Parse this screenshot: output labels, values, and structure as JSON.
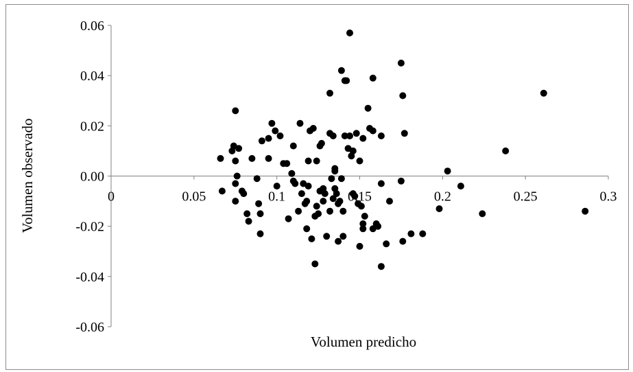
{
  "chart_data": {
    "type": "scatter",
    "title": "",
    "xlabel": "Volumen predicho",
    "ylabel": "Volumen observado",
    "xlim": [
      0,
      0.3
    ],
    "ylim": [
      -0.06,
      0.06
    ],
    "x_ticks": [
      0,
      0.05,
      0.1,
      0.15,
      0.2,
      0.25,
      0.3
    ],
    "x_tick_labels": [
      "0",
      "0.05",
      "0.1",
      "0.15",
      "0.2",
      "0.25",
      "0.3"
    ],
    "y_ticks": [
      0.06,
      0.04,
      0.02,
      0.0,
      -0.02,
      -0.04,
      -0.06
    ],
    "y_tick_labels": [
      "0.06",
      "0.04",
      "0.02",
      "0.00",
      "-0.02",
      "-0.04",
      "-0.06"
    ],
    "grid": false,
    "legend": "none",
    "marker_color": "#000000",
    "series": [
      {
        "points": [
          [
            0.066,
            0.007
          ],
          [
            0.067,
            -0.006
          ],
          [
            0.073,
            0.01
          ],
          [
            0.074,
            0.012
          ],
          [
            0.075,
            0.026
          ],
          [
            0.075,
            0.006
          ],
          [
            0.075,
            -0.003
          ],
          [
            0.075,
            -0.01
          ],
          [
            0.076,
            0.0
          ],
          [
            0.077,
            0.011
          ],
          [
            0.079,
            -0.006
          ],
          [
            0.08,
            -0.007
          ],
          [
            0.082,
            -0.015
          ],
          [
            0.083,
            -0.018
          ],
          [
            0.085,
            0.007
          ],
          [
            0.088,
            -0.001
          ],
          [
            0.089,
            -0.011
          ],
          [
            0.09,
            -0.015
          ],
          [
            0.09,
            -0.023
          ],
          [
            0.091,
            0.014
          ],
          [
            0.095,
            0.015
          ],
          [
            0.095,
            0.007
          ],
          [
            0.097,
            0.021
          ],
          [
            0.099,
            0.018
          ],
          [
            0.1,
            -0.004
          ],
          [
            0.102,
            0.016
          ],
          [
            0.104,
            0.005
          ],
          [
            0.106,
            0.005
          ],
          [
            0.107,
            -0.017
          ],
          [
            0.109,
            0.001
          ],
          [
            0.11,
            0.012
          ],
          [
            0.11,
            -0.002
          ],
          [
            0.111,
            -0.003
          ],
          [
            0.113,
            -0.014
          ],
          [
            0.114,
            0.021
          ],
          [
            0.115,
            -0.007
          ],
          [
            0.116,
            -0.003
          ],
          [
            0.117,
            -0.011
          ],
          [
            0.118,
            -0.01
          ],
          [
            0.118,
            -0.021
          ],
          [
            0.119,
            0.006
          ],
          [
            0.119,
            -0.004
          ],
          [
            0.12,
            0.018
          ],
          [
            0.121,
            -0.025
          ],
          [
            0.122,
            0.019
          ],
          [
            0.123,
            -0.035
          ],
          [
            0.123,
            -0.016
          ],
          [
            0.124,
            0.006
          ],
          [
            0.124,
            -0.012
          ],
          [
            0.125,
            -0.015
          ],
          [
            0.126,
            0.012
          ],
          [
            0.126,
            -0.006
          ],
          [
            0.127,
            0.013
          ],
          [
            0.128,
            -0.005
          ],
          [
            0.128,
            -0.01
          ],
          [
            0.129,
            -0.007
          ],
          [
            0.13,
            -0.024
          ],
          [
            0.132,
            0.033
          ],
          [
            0.132,
            0.017
          ],
          [
            0.132,
            -0.014
          ],
          [
            0.133,
            -0.001
          ],
          [
            0.134,
            0.016
          ],
          [
            0.134,
            -0.009
          ],
          [
            0.135,
            0.002
          ],
          [
            0.135,
            0.003
          ],
          [
            0.135,
            -0.005
          ],
          [
            0.136,
            -0.007
          ],
          [
            0.137,
            -0.011
          ],
          [
            0.137,
            -0.026
          ],
          [
            0.138,
            -0.01
          ],
          [
            0.139,
            0.042
          ],
          [
            0.139,
            -0.001
          ],
          [
            0.14,
            -0.024
          ],
          [
            0.14,
            -0.014
          ],
          [
            0.141,
            0.038
          ],
          [
            0.141,
            0.016
          ],
          [
            0.142,
            0.038
          ],
          [
            0.143,
            0.011
          ],
          [
            0.144,
            0.057
          ],
          [
            0.144,
            0.016
          ],
          [
            0.145,
            0.008
          ],
          [
            0.146,
            0.01
          ],
          [
            0.146,
            -0.007
          ],
          [
            0.147,
            -0.008
          ],
          [
            0.148,
            0.017
          ],
          [
            0.149,
            -0.011
          ],
          [
            0.15,
            -0.028
          ],
          [
            0.15,
            0.006
          ],
          [
            0.151,
            -0.012
          ],
          [
            0.152,
            0.015
          ],
          [
            0.152,
            -0.019
          ],
          [
            0.152,
            -0.021
          ],
          [
            0.153,
            -0.016
          ],
          [
            0.155,
            0.027
          ],
          [
            0.156,
            0.019
          ],
          [
            0.158,
            0.039
          ],
          [
            0.158,
            0.018
          ],
          [
            0.158,
            -0.021
          ],
          [
            0.16,
            -0.019
          ],
          [
            0.161,
            -0.02
          ],
          [
            0.163,
            0.016
          ],
          [
            0.163,
            -0.003
          ],
          [
            0.163,
            -0.036
          ],
          [
            0.166,
            -0.027
          ],
          [
            0.168,
            -0.01
          ],
          [
            0.175,
            0.045
          ],
          [
            0.175,
            -0.002
          ],
          [
            0.176,
            0.032
          ],
          [
            0.176,
            -0.026
          ],
          [
            0.177,
            0.017
          ],
          [
            0.181,
            -0.023
          ],
          [
            0.188,
            -0.023
          ],
          [
            0.198,
            -0.013
          ],
          [
            0.203,
            0.002
          ],
          [
            0.211,
            -0.004
          ],
          [
            0.224,
            -0.015
          ],
          [
            0.238,
            0.01
          ],
          [
            0.261,
            0.033
          ],
          [
            0.286,
            -0.014
          ]
        ]
      }
    ]
  }
}
